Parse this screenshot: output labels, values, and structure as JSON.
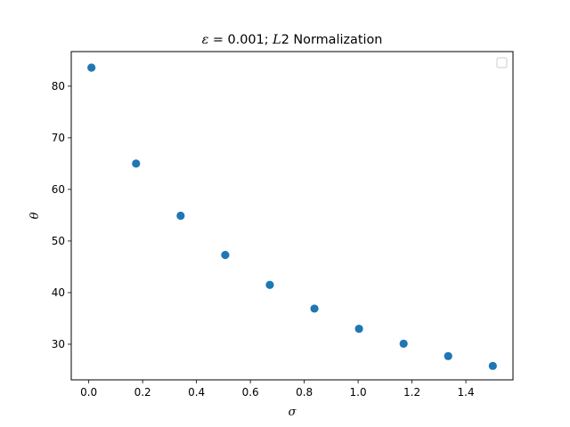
{
  "chart_data": {
    "type": "scatter",
    "title_parts": [
      "ε",
      " = 0.001; ",
      "L",
      "2 Normalization"
    ],
    "xlabel": "σ",
    "ylabel": "θ",
    "xlim": [
      -0.065,
      1.575
    ],
    "ylim": [
      23.1,
      86.7
    ],
    "xticks": [
      0.0,
      0.2,
      0.4,
      0.6,
      0.8,
      1.0,
      1.2,
      1.4
    ],
    "xtick_labels": [
      "0.0",
      "0.2",
      "0.4",
      "0.6",
      "0.8",
      "1.0",
      "1.2",
      "1.4"
    ],
    "yticks": [
      30,
      40,
      50,
      60,
      70,
      80
    ],
    "ytick_labels": [
      "30",
      "40",
      "50",
      "60",
      "70",
      "80"
    ],
    "grid": false,
    "legend": "upper-right (empty)",
    "marker_color": "#1f77b4",
    "series": [
      {
        "x": [
          0.01,
          0.1756,
          0.3411,
          0.5067,
          0.6722,
          0.8378,
          1.0033,
          1.1689,
          1.3344,
          1.5
        ],
        "y": [
          83.6,
          65.0,
          54.9,
          47.3,
          41.5,
          36.9,
          33.0,
          30.1,
          27.7,
          25.8
        ]
      }
    ]
  }
}
